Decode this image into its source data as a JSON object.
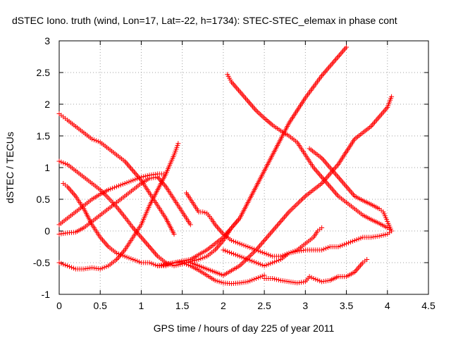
{
  "chart_data": {
    "type": "scatter",
    "title": "dSTEC Iono. truth (wind, Lon=17, Lat=-22, h=1734): STEC-STEC_elemax in phase cont",
    "xlabel": "GPS time / hours of day 225 of year 2011",
    "ylabel": "dSTEC  / TECUs",
    "xlim": [
      0,
      4.5
    ],
    "ylim": [
      -1,
      3
    ],
    "xticks": [
      "0",
      "0.5",
      "1",
      "1.5",
      "2",
      "2.5",
      "3",
      "3.5",
      "4",
      "4.5"
    ],
    "yticks": [
      "-1",
      "-0.5",
      "0",
      "0.5",
      "1",
      "1.5",
      "2",
      "2.5",
      "3"
    ],
    "grid": true,
    "marker": "+",
    "color": "#ff0000",
    "series": [
      {
        "x": [
          0.0,
          0.1,
          0.2,
          0.3,
          0.4,
          0.5,
          0.6,
          0.7,
          0.8,
          0.9,
          1.0,
          1.1,
          1.2,
          1.3,
          1.4,
          1.45
        ],
        "y": [
          -0.5,
          -0.55,
          -0.6,
          -0.6,
          -0.58,
          -0.6,
          -0.55,
          -0.45,
          -0.3,
          -0.1,
          0.1,
          0.4,
          0.65,
          0.9,
          1.2,
          1.38
        ]
      },
      {
        "x": [
          0.0,
          0.05,
          0.1,
          0.2,
          0.3,
          0.4,
          0.5,
          0.6,
          0.7,
          0.8,
          0.9,
          1.0,
          1.1,
          1.2,
          1.3,
          1.4
        ],
        "y": [
          1.85,
          1.8,
          1.75,
          1.65,
          1.55,
          1.45,
          1.4,
          1.3,
          1.2,
          1.1,
          0.95,
          0.8,
          0.6,
          0.4,
          0.2,
          -0.05
        ]
      },
      {
        "x": [
          0.0,
          0.1,
          0.2,
          0.3,
          0.4,
          0.5,
          0.6,
          0.7,
          0.8,
          0.9,
          1.0,
          1.1,
          1.2,
          1.3
        ],
        "y": [
          0.1,
          0.2,
          0.3,
          0.4,
          0.5,
          0.58,
          0.65,
          0.7,
          0.75,
          0.8,
          0.85,
          0.88,
          0.9,
          0.9
        ]
      },
      {
        "x": [
          0.0,
          0.1,
          0.2,
          0.3,
          0.4,
          0.5,
          0.6,
          0.7,
          0.8,
          0.9,
          1.0,
          1.1,
          1.2,
          1.3,
          1.4,
          1.5,
          1.6
        ],
        "y": [
          -0.05,
          -0.03,
          -0.02,
          0.05,
          0.15,
          0.25,
          0.35,
          0.45,
          0.55,
          0.65,
          0.75,
          0.83,
          0.85,
          0.7,
          0.5,
          0.3,
          0.1
        ]
      },
      {
        "x": [
          0.0,
          0.1,
          0.2,
          0.3,
          0.4,
          0.5,
          0.6,
          0.7,
          0.8,
          0.9,
          1.0,
          1.1,
          1.2,
          1.3,
          1.4,
          1.5,
          1.6,
          1.7,
          1.8,
          1.9,
          2.0,
          2.1,
          2.2
        ],
        "y": [
          1.1,
          1.05,
          0.95,
          0.85,
          0.75,
          0.65,
          0.52,
          0.38,
          0.22,
          0.05,
          -0.1,
          -0.25,
          -0.4,
          -0.5,
          -0.55,
          -0.52,
          -0.48,
          -0.45,
          -0.4,
          -0.3,
          -0.15,
          0.05,
          0.2
        ]
      },
      {
        "x": [
          0.05,
          0.1,
          0.2,
          0.3,
          0.4,
          0.5,
          0.6,
          0.7,
          0.8,
          0.9,
          1.0,
          1.1,
          1.2,
          1.3,
          1.4,
          1.5,
          1.6,
          1.7,
          1.8,
          1.9,
          2.0,
          2.1,
          2.2,
          2.3,
          2.4,
          2.5
        ],
        "y": [
          0.75,
          0.7,
          0.55,
          0.35,
          0.1,
          -0.1,
          -0.25,
          -0.35,
          -0.4,
          -0.45,
          -0.5,
          -0.5,
          -0.55,
          -0.55,
          -0.5,
          -0.5,
          -0.55,
          -0.62,
          -0.7,
          -0.78,
          -0.82,
          -0.83,
          -0.82,
          -0.8,
          -0.75,
          -0.7
        ]
      },
      {
        "x": [
          1.55,
          1.6,
          1.65,
          1.7,
          1.75,
          1.8,
          1.85,
          1.9,
          2.0,
          2.1,
          2.2,
          2.3,
          2.4,
          2.5,
          2.6,
          2.7,
          2.8,
          2.9,
          3.0,
          3.1,
          3.15,
          3.2
        ],
        "y": [
          0.6,
          0.5,
          0.4,
          0.3,
          0.3,
          0.28,
          0.2,
          0.1,
          -0.05,
          -0.15,
          -0.2,
          -0.25,
          -0.3,
          -0.35,
          -0.4,
          -0.4,
          -0.35,
          -0.3,
          -0.2,
          -0.1,
          0.0,
          0.05
        ]
      },
      {
        "x": [
          1.2,
          1.4,
          1.6,
          1.8,
          2.0,
          2.2,
          2.4,
          2.6,
          2.8,
          3.0,
          3.2,
          3.4,
          3.5
        ],
        "y": [
          -0.55,
          -0.5,
          -0.45,
          -0.3,
          -0.1,
          0.2,
          0.7,
          1.2,
          1.7,
          2.1,
          2.45,
          2.75,
          2.9
        ]
      },
      {
        "x": [
          1.6,
          1.8,
          2.0,
          2.2,
          2.4,
          2.6,
          2.8,
          3.0,
          3.2,
          3.4,
          3.6,
          3.8,
          4.0,
          4.05
        ],
        "y": [
          -0.5,
          -0.6,
          -0.7,
          -0.55,
          -0.3,
          0.0,
          0.3,
          0.55,
          0.75,
          1.05,
          1.45,
          1.65,
          1.95,
          2.12
        ]
      },
      {
        "x": [
          2.05,
          2.1,
          2.2,
          2.3,
          2.4,
          2.5,
          2.6,
          2.7,
          2.8,
          2.9,
          3.0,
          3.1,
          3.2,
          3.3,
          3.4,
          3.5,
          3.6,
          3.7,
          3.8,
          3.9,
          4.0,
          4.05
        ],
        "y": [
          2.47,
          2.35,
          2.2,
          2.05,
          1.9,
          1.78,
          1.67,
          1.58,
          1.5,
          1.4,
          1.2,
          1.0,
          0.85,
          0.7,
          0.55,
          0.45,
          0.35,
          0.25,
          0.18,
          0.12,
          0.05,
          0.0
        ]
      },
      {
        "x": [
          2.0,
          2.1,
          2.2,
          2.3,
          2.4,
          2.5,
          2.6,
          2.7,
          2.8,
          2.9,
          3.0,
          3.1,
          3.2,
          3.3,
          3.4,
          3.5,
          3.6,
          3.7,
          3.8,
          3.9,
          4.0,
          4.05
        ],
        "y": [
          -0.3,
          -0.35,
          -0.4,
          -0.45,
          -0.5,
          -0.55,
          -0.5,
          -0.45,
          -0.35,
          -0.32,
          -0.3,
          -0.3,
          -0.3,
          -0.25,
          -0.25,
          -0.2,
          -0.15,
          -0.1,
          -0.1,
          -0.08,
          -0.05,
          0.0
        ]
      },
      {
        "x": [
          2.5,
          2.6,
          2.7,
          2.8,
          2.9,
          3.0,
          3.05,
          3.1,
          3.2,
          3.3,
          3.4,
          3.5,
          3.6,
          3.7,
          3.75
        ],
        "y": [
          -0.75,
          -0.75,
          -0.78,
          -0.8,
          -0.82,
          -0.8,
          -0.72,
          -0.75,
          -0.8,
          -0.78,
          -0.72,
          -0.72,
          -0.65,
          -0.5,
          -0.45
        ]
      },
      {
        "x": [
          3.05,
          3.2,
          3.4,
          3.5,
          3.6,
          3.7,
          3.8,
          3.9,
          3.95,
          4.0,
          4.05
        ],
        "y": [
          1.3,
          1.15,
          0.85,
          0.7,
          0.55,
          0.48,
          0.42,
          0.35,
          0.3,
          0.15,
          0.0
        ]
      }
    ]
  }
}
